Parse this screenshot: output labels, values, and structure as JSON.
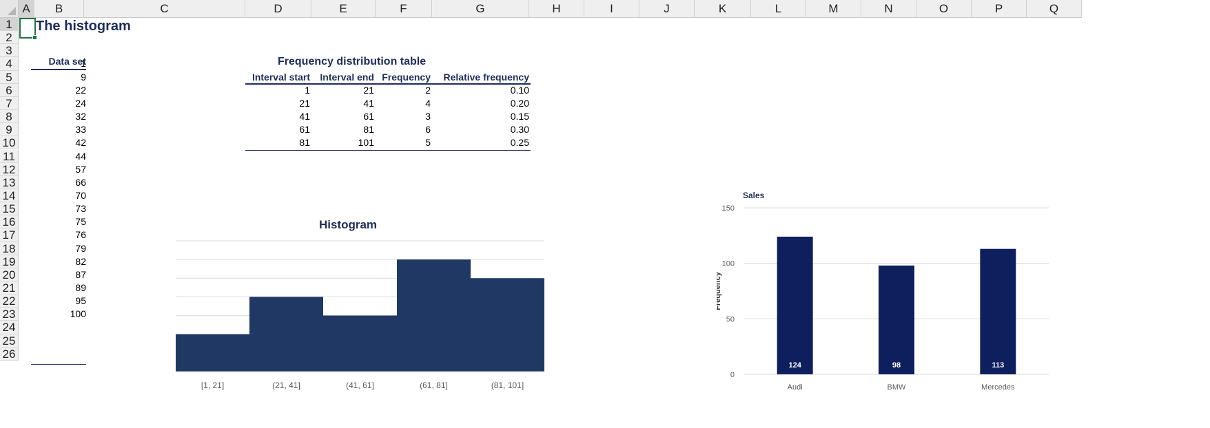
{
  "grid": {
    "columns": [
      "A",
      "B",
      "C",
      "D",
      "E",
      "F",
      "G",
      "H",
      "I",
      "J",
      "K",
      "L",
      "M",
      "N",
      "O",
      "P",
      "Q"
    ],
    "rows": [
      "1",
      "2",
      "3",
      "4",
      "5",
      "6",
      "7",
      "8",
      "9",
      "10",
      "11",
      "12",
      "13",
      "14",
      "15",
      "16",
      "17",
      "18",
      "19",
      "20",
      "21",
      "22",
      "23",
      "24",
      "25",
      "26"
    ]
  },
  "sheet": {
    "title": "The histogram",
    "data_set_header": "Data set",
    "data_set": [
      "1",
      "9",
      "22",
      "24",
      "32",
      "33",
      "42",
      "44",
      "57",
      "66",
      "70",
      "73",
      "75",
      "76",
      "79",
      "82",
      "87",
      "89",
      "95",
      "100"
    ]
  },
  "freq_table": {
    "title": "Frequency distribution table",
    "headers": [
      "Interval start",
      "Interval end",
      "Frequency",
      "Relative frequency"
    ],
    "rows": [
      [
        "1",
        "21",
        "2",
        "0.10"
      ],
      [
        "21",
        "41",
        "4",
        "0.20"
      ],
      [
        "41",
        "61",
        "3",
        "0.15"
      ],
      [
        "61",
        "81",
        "6",
        "0.30"
      ],
      [
        "81",
        "101",
        "5",
        "0.25"
      ]
    ]
  },
  "chart_data": [
    {
      "type": "bar",
      "title": "Histogram",
      "categories": [
        "[1, 21]",
        "(21, 41]",
        "(41, 61]",
        "(61, 81]",
        "(81, 101]"
      ],
      "values": [
        2,
        4,
        3,
        6,
        5
      ],
      "ylim": [
        0,
        7
      ],
      "yticks": [
        "0",
        "1",
        "2",
        "3",
        "4",
        "5",
        "6",
        "7"
      ],
      "grid": true,
      "bar_color": "#1f3864"
    },
    {
      "type": "bar",
      "title": "Sales",
      "ylabel": "Frequency",
      "categories": [
        "Audi",
        "BMW",
        "Mercedes"
      ],
      "values": [
        124,
        98,
        113
      ],
      "data_labels": [
        "124",
        "98",
        "113"
      ],
      "ylim": [
        0,
        150
      ],
      "yticks": [
        "0",
        "50",
        "100",
        "150"
      ],
      "grid": true,
      "bar_color": "#0d1f5c"
    }
  ],
  "colors": {
    "accent": "#1f2d5a",
    "selection": "#217346"
  }
}
